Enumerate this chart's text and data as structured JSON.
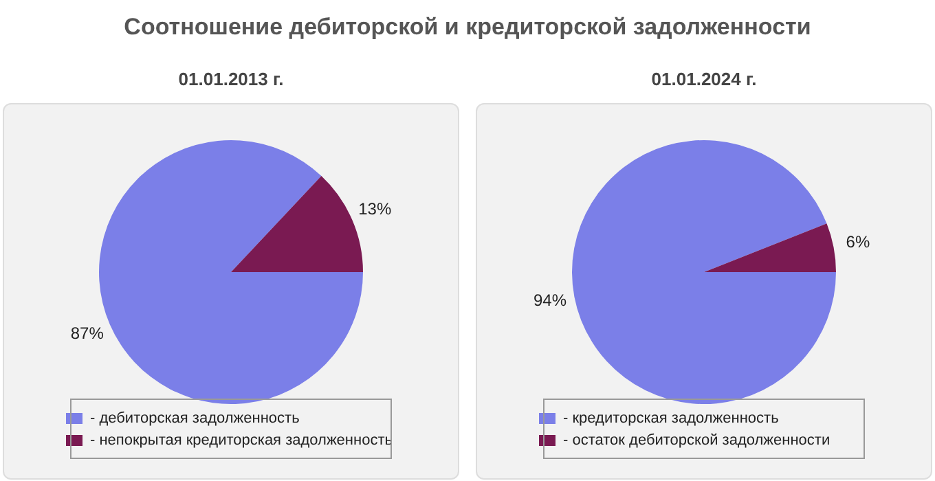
{
  "chart_data": [
    {
      "type": "pie",
      "title": "01.01.2013 г.",
      "annotations": [
        "Соотношение дебиторской и кредиторской задолженности"
      ],
      "categories": [
        "- дебиторская задолженность",
        "- непокрытая кредиторская задолженность"
      ],
      "values": [
        87,
        13
      ],
      "value_labels": [
        "87%",
        "13%"
      ],
      "colors": [
        "#7b7fe8",
        "#7a1a52"
      ],
      "legend": "bottom"
    },
    {
      "type": "pie",
      "title": "01.01.2024 г.",
      "categories": [
        "- кредиторская задолженность",
        "- остаток дебиторской задолженности"
      ],
      "values": [
        94,
        6
      ],
      "value_labels": [
        "94%",
        "6%"
      ],
      "colors": [
        "#7b7fe8",
        "#7a1a52"
      ],
      "legend": "bottom"
    }
  ]
}
